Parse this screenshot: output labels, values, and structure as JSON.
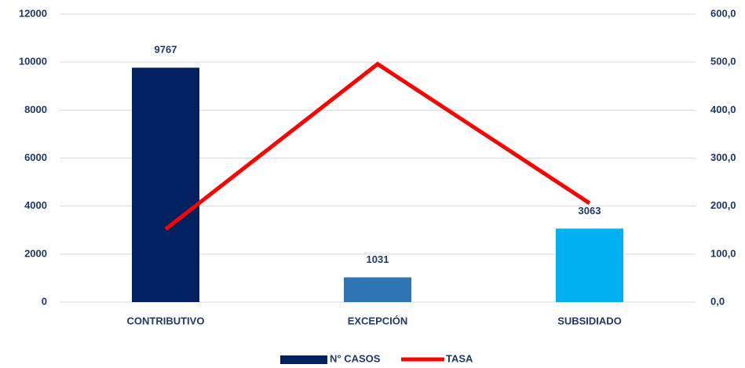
{
  "chart_data": {
    "type": "bar",
    "categories": [
      "CONTRIBUTIVO",
      "EXCEPCIÓN",
      "SUBSIDIADO"
    ],
    "series": [
      {
        "name": "N° CASOS",
        "type": "bar",
        "color": "#002060",
        "colors": [
          "#002060",
          "#2E75B6",
          "#00B0F0"
        ],
        "values": [
          9767,
          1031,
          3063
        ]
      },
      {
        "name": "TASA",
        "type": "line",
        "color": "#FF0000",
        "axis": "y2",
        "values": [
          152,
          496,
          206
        ]
      }
    ],
    "ylim": [
      0,
      12000
    ],
    "yticks": [
      0,
      2000,
      4000,
      6000,
      8000,
      10000,
      12000
    ],
    "y2lim": [
      0,
      600
    ],
    "y2ticks": [
      {
        "value": 0,
        "label": "0,0"
      },
      {
        "value": 100,
        "label": "100,0"
      },
      {
        "value": 200,
        "label": "200,0"
      },
      {
        "value": 300,
        "label": "300,0"
      },
      {
        "value": 400,
        "label": "400,0"
      },
      {
        "value": 500,
        "label": "500,0"
      },
      {
        "value": 600,
        "label": "600,0"
      }
    ],
    "grid": true,
    "legend": "bottom"
  }
}
